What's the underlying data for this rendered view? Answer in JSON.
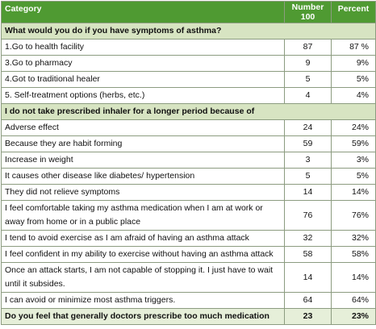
{
  "table": {
    "columns": {
      "category": "Category",
      "number": "Number",
      "number_total": 100,
      "percent": "Percent"
    },
    "sections": [
      {
        "title": "What would you do if you have symptoms of asthma?",
        "rows": [
          {
            "label": "1.Go to health facility",
            "number": 87,
            "percent": "87 %"
          },
          {
            "label": "3.Go to pharmacy",
            "number": 9,
            "percent": "9%"
          },
          {
            "label": "4.Got to traditional healer",
            "number": 5,
            "percent": "5%"
          },
          {
            "label": "5. Self-treatment options (herbs, etc.)",
            "number": 4,
            "percent": "4%"
          }
        ]
      },
      {
        "title": "I do not take prescribed inhaler for a longer period because of",
        "rows": [
          {
            "label": "Adverse effect",
            "number": 24,
            "percent": "24%"
          },
          {
            "label": "Because they are habit forming",
            "number": 59,
            "percent": "59%"
          },
          {
            "label": "Increase in weight",
            "number": 3,
            "percent": "3%"
          },
          {
            "label": "It causes other disease like diabetes/ hypertension",
            "number": 5,
            "percent": "5%"
          },
          {
            "label": "They did not relieve symptoms",
            "number": 14,
            "percent": "14%"
          },
          {
            "label": "I feel comfortable taking my asthma medication when I am at work or away from home or in a public place",
            "number": 76,
            "percent": "76%"
          },
          {
            "label": "I tend to avoid exercise as I am afraid of having an asthma attack",
            "number": 32,
            "percent": "32%"
          },
          {
            "label": "I feel confident in my ability to exercise without having an asthma attack",
            "number": 58,
            "percent": "58%"
          },
          {
            "label": "Once an attack starts, I am not capable of stopping it. I just have to wait until it subsides.",
            "number": 14,
            "percent": "14%"
          },
          {
            "label": "I can avoid or minimize most asthma triggers.",
            "number": 64,
            "percent": "64%"
          }
        ]
      }
    ],
    "footer": {
      "label": "Do you feel that generally doctors prescribe too much medication",
      "number": 23,
      "percent": "23%"
    }
  }
}
